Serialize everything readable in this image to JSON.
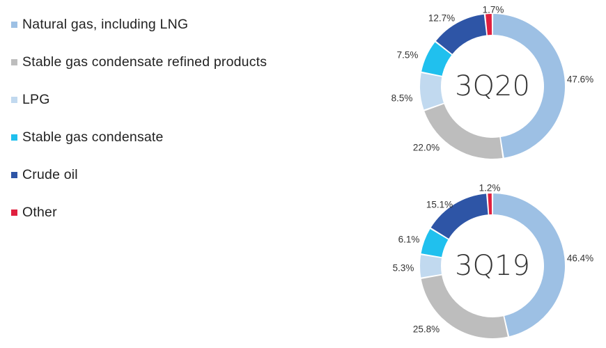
{
  "legend": [
    {
      "label": "Natural gas, including LNG",
      "color": "#9dc0e4"
    },
    {
      "label": "Stable gas condensate refined products",
      "color": "#bdbdbd"
    },
    {
      "label": "LPG",
      "color": "#c1d9ef"
    },
    {
      "label": "Stable gas condensate",
      "color": "#20c0ee"
    },
    {
      "label": "Crude oil",
      "color": "#2e55a6"
    },
    {
      "label": "Other",
      "color": "#e0203f"
    }
  ],
  "chart_data": [
    {
      "type": "pie",
      "title": "3Q20",
      "categories": [
        "Natural gas, including LNG",
        "Stable gas condensate refined products",
        "LPG",
        "Stable gas condensate",
        "Crude oil",
        "Other"
      ],
      "values": [
        47.6,
        22.0,
        8.5,
        7.5,
        12.7,
        1.7
      ],
      "labels": [
        "47.6%",
        "22.0%",
        "8.5%",
        "7.5%",
        "12.7%",
        "1.7%"
      ]
    },
    {
      "type": "pie",
      "title": "3Q19",
      "categories": [
        "Natural gas, including LNG",
        "Stable gas condensate refined products",
        "LPG",
        "Stable gas condensate",
        "Crude oil",
        "Other"
      ],
      "values": [
        46.4,
        25.8,
        5.3,
        6.1,
        15.1,
        1.2
      ],
      "labels": [
        "46.4%",
        "25.8%",
        "5.3%",
        "6.1%",
        "15.1%",
        "1.2%"
      ]
    }
  ]
}
